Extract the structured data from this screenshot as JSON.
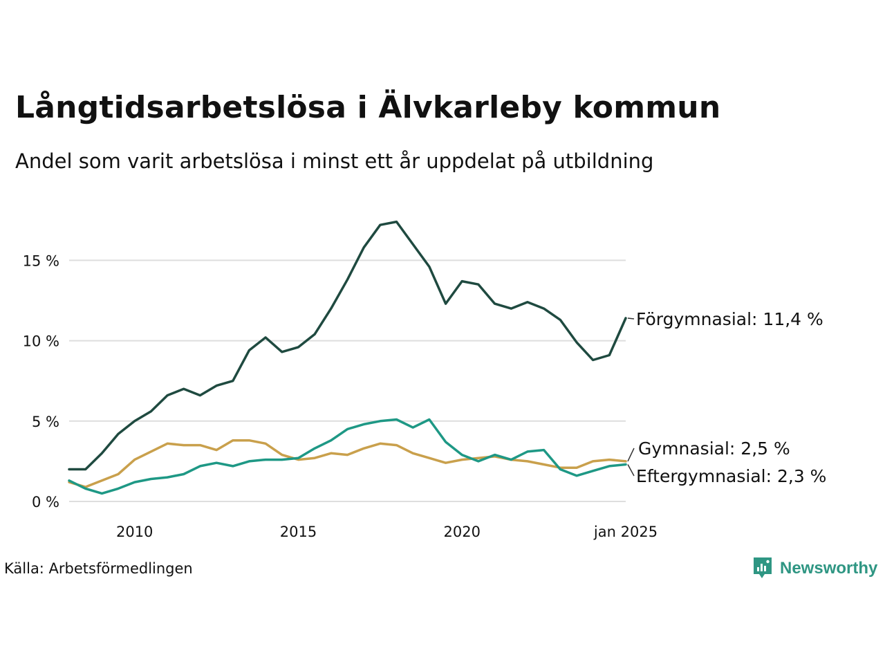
{
  "header": {
    "title": "Långtidsarbetslösa i Älvkarleby kommun",
    "subtitle": "Andel som varit arbetslösa i minst ett år uppdelat på utbildning"
  },
  "footer": {
    "source": "Källa: Arbetsförmedlingen",
    "brand": "Newsworthy"
  },
  "chart_data": {
    "type": "line",
    "title": "Långtidsarbetslösa i Älvkarleby kommun",
    "subtitle": "Andel som varit arbetslösa i minst ett år uppdelat på utbildning",
    "xlabel": "",
    "ylabel": "",
    "xlim": [
      2008.0,
      2025.0
    ],
    "ylim": [
      0,
      18.5
    ],
    "grid": "horizontal",
    "yticks": [
      {
        "value": 0,
        "label": "0 %"
      },
      {
        "value": 5,
        "label": "5 %"
      },
      {
        "value": 10,
        "label": "10 %"
      },
      {
        "value": 15,
        "label": "15 %"
      }
    ],
    "xticks": [
      {
        "value": 2010,
        "label": "2010"
      },
      {
        "value": 2015,
        "label": "2015"
      },
      {
        "value": 2020,
        "label": "2020"
      },
      {
        "value": 2025,
        "label": "jan 2025"
      }
    ],
    "series": [
      {
        "name": "Förgymnasial",
        "end_label": "Förgymnasial: 11,4 %",
        "color": "#1f4a40",
        "x": [
          2008.0,
          2008.5,
          2009.0,
          2009.5,
          2010.0,
          2010.5,
          2011.0,
          2011.5,
          2012.0,
          2012.5,
          2013.0,
          2013.5,
          2014.0,
          2014.5,
          2015.0,
          2015.5,
          2016.0,
          2016.5,
          2017.0,
          2017.5,
          2018.0,
          2018.5,
          2019.0,
          2019.5,
          2020.0,
          2020.5,
          2021.0,
          2021.5,
          2022.0,
          2022.5,
          2023.0,
          2023.5,
          2024.0,
          2024.5,
          2025.0
        ],
        "y": [
          2.0,
          2.0,
          3.0,
          4.2,
          5.0,
          5.6,
          6.6,
          7.0,
          6.6,
          7.2,
          7.5,
          9.4,
          10.2,
          9.3,
          9.6,
          10.4,
          12.0,
          13.8,
          15.8,
          17.2,
          17.4,
          16.0,
          14.6,
          12.3,
          13.7,
          13.5,
          12.3,
          12.0,
          12.4,
          12.0,
          11.3,
          9.9,
          8.8,
          9.1,
          11.4
        ]
      },
      {
        "name": "Gymnasial",
        "end_label": "Gymnasial:  2,5 %",
        "color": "#c9a04c",
        "x": [
          2008.0,
          2008.5,
          2009.0,
          2009.5,
          2010.0,
          2010.5,
          2011.0,
          2011.5,
          2012.0,
          2012.5,
          2013.0,
          2013.5,
          2014.0,
          2014.5,
          2015.0,
          2015.5,
          2016.0,
          2016.5,
          2017.0,
          2017.5,
          2018.0,
          2018.5,
          2019.0,
          2019.5,
          2020.0,
          2020.5,
          2021.0,
          2021.5,
          2022.0,
          2022.5,
          2023.0,
          2023.5,
          2024.0,
          2024.5,
          2025.0
        ],
        "y": [
          1.2,
          0.9,
          1.3,
          1.7,
          2.6,
          3.1,
          3.6,
          3.5,
          3.5,
          3.2,
          3.8,
          3.8,
          3.6,
          2.9,
          2.6,
          2.7,
          3.0,
          2.9,
          3.3,
          3.6,
          3.5,
          3.0,
          2.7,
          2.4,
          2.6,
          2.7,
          2.8,
          2.6,
          2.5,
          2.3,
          2.1,
          2.1,
          2.5,
          2.6,
          2.5
        ]
      },
      {
        "name": "Eftergymnasial",
        "end_label": "Eftergymnasial:  2,3 %",
        "color": "#1e9885",
        "x": [
          2008.0,
          2008.5,
          2009.0,
          2009.5,
          2010.0,
          2010.5,
          2011.0,
          2011.5,
          2012.0,
          2012.5,
          2013.0,
          2013.5,
          2014.0,
          2014.5,
          2015.0,
          2015.5,
          2016.0,
          2016.5,
          2017.0,
          2017.5,
          2018.0,
          2018.5,
          2019.0,
          2019.5,
          2020.0,
          2020.5,
          2021.0,
          2021.5,
          2022.0,
          2022.5,
          2023.0,
          2023.5,
          2024.0,
          2024.5,
          2025.0
        ],
        "y": [
          1.3,
          0.8,
          0.5,
          0.8,
          1.2,
          1.4,
          1.5,
          1.7,
          2.2,
          2.4,
          2.2,
          2.5,
          2.6,
          2.6,
          2.7,
          3.3,
          3.8,
          4.5,
          4.8,
          5.0,
          5.1,
          4.6,
          5.1,
          3.7,
          2.9,
          2.5,
          2.9,
          2.6,
          3.1,
          3.2,
          2.0,
          1.6,
          1.9,
          2.2,
          2.3
        ]
      }
    ]
  }
}
